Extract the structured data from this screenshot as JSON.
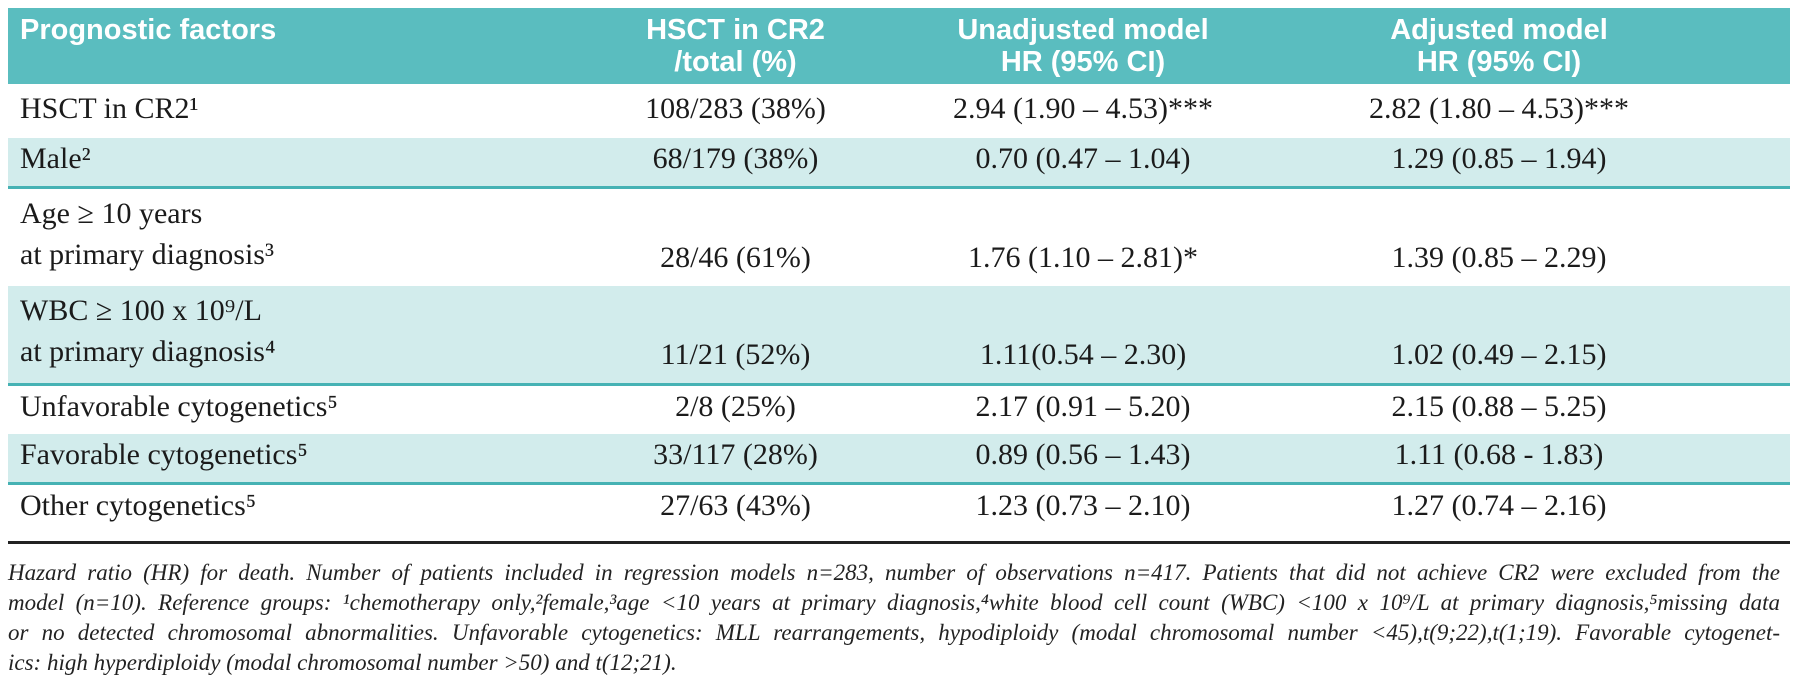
{
  "table": {
    "columns": [
      {
        "label": "Prognostic factors"
      },
      {
        "label": "HSCT in CR2\n/total (%)"
      },
      {
        "label": "Unadjusted model\nHR (95% CI)"
      },
      {
        "label": "Adjusted model\nHR (95% CI)"
      }
    ],
    "rows": [
      {
        "factor": "HSCT in CR2¹",
        "hsct_total": "108/283 (38%)",
        "unadjusted_hr": "2.94 (1.90 – 4.53)***",
        "adjusted_hr": "2.82 (1.80 – 4.53)***",
        "shaded": false
      },
      {
        "factor": "Male²",
        "hsct_total": "68/179 (38%)",
        "unadjusted_hr": "0.70 (0.47 – 1.04)",
        "adjusted_hr": "1.29 (0.85 – 1.94)",
        "shaded": true
      },
      {
        "factor": "Age ≥ 10 years\nat primary diagnosis³",
        "hsct_total": "28/46 (61%)",
        "unadjusted_hr": "1.76 (1.10 – 2.81)*",
        "adjusted_hr": "1.39 (0.85 – 2.29)",
        "shaded": false
      },
      {
        "factor": "WBC ≥ 100 x 10⁹/L\nat primary diagnosis⁴",
        "hsct_total": "11/21 (52%)",
        "unadjusted_hr": "1.11(0.54 – 2.30)",
        "adjusted_hr": "1.02 (0.49 – 2.15)",
        "shaded": true
      },
      {
        "factor": "Unfavorable cytogenetics⁵",
        "hsct_total": "2/8 (25%)",
        "unadjusted_hr": "2.17 (0.91 – 5.20)",
        "adjusted_hr": "2.15 (0.88 – 5.25)",
        "shaded": false
      },
      {
        "factor": "Favorable cytogenetics⁵",
        "hsct_total": "33/117 (28%)",
        "unadjusted_hr": "0.89 (0.56 – 1.43)",
        "adjusted_hr": "1.11 (0.68 - 1.83)",
        "shaded": true
      },
      {
        "factor": "Other cytogenetics⁵",
        "hsct_total": "27/63 (43%)",
        "unadjusted_hr": "1.23 (0.73 – 2.10)",
        "adjusted_hr": "1.27 (0.74 – 2.16)",
        "shaded": false
      }
    ]
  },
  "footnote": {
    "lines": [
      "Hazard ratio (HR) for death. Number of patients included in regression models n=283, number of observations n=417. Patients that did not achieve CR2 were excluded from the",
      "model (n=10). Reference groups: ¹chemotherapy only,²female,³age <10 years at primary diagnosis,⁴white blood cell count (WBC) <100 x 10⁹/L at primary diagnosis,⁵missing data",
      "or no detected chromosomal abnormalities. Unfavorable cytogenetics: MLL rearrangements, hypodiploidy (modal chromosomal number <45),t(9;22),t(1;19).  Favorable cytogenet-",
      "ics: high hyperdiploidy (modal chromosomal number >50) and t(12;21)."
    ]
  },
  "colors": {
    "header_bg": "#5abdbf",
    "row_shaded_bg": "#d2ecec",
    "separator": "#46b2b4",
    "rule": "#222222"
  }
}
